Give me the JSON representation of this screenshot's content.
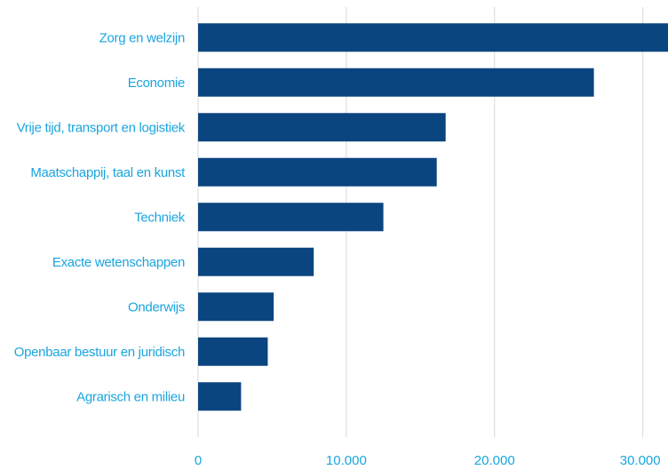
{
  "chart_data": {
    "type": "bar",
    "orientation": "horizontal",
    "categories": [
      "Zorg en welzijn",
      "Economie",
      "Vrije tijd, transport en logistiek",
      "Maatschappij, taal en kunst",
      "Techniek",
      "Exacte wetenschappen",
      "Onderwijs",
      "Openbaar bestuur en juridisch",
      "Agrarisch en milieu"
    ],
    "values": [
      31700,
      26700,
      16700,
      16100,
      12500,
      7800,
      5100,
      4700,
      2900
    ],
    "xlim": [
      0,
      31700
    ],
    "x_ticks": [
      0,
      10000,
      20000,
      30000
    ],
    "x_tick_labels": [
      "0",
      "10.000",
      "20.000",
      "30.000"
    ],
    "title": "",
    "xlabel": "",
    "ylabel": "",
    "grid": "vertical",
    "legend": "none",
    "colors": {
      "bar": "#0B4580",
      "label": "#1AA5DF",
      "grid": "#D9D9D9"
    }
  }
}
